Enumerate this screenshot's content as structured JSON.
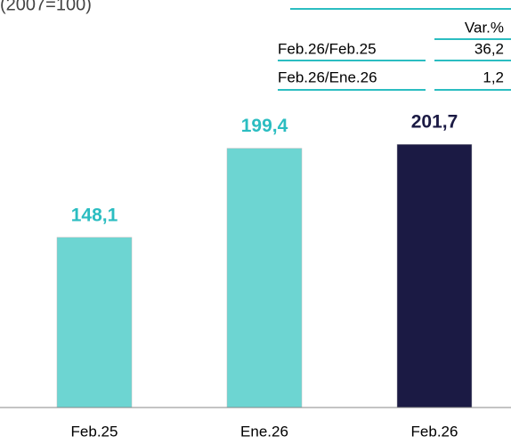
{
  "chart_data": {
    "type": "bar",
    "subtitle": "(2007=100)",
    "categories": [
      "Feb.25",
      "Ene.26",
      "Feb.26"
    ],
    "values": [
      148.1,
      199.4,
      201.7
    ],
    "value_labels": [
      "148,1",
      "199,4",
      "201,7"
    ],
    "colors": [
      "#6dd5d2",
      "#6dd5d2",
      "#1b1a44"
    ],
    "label_colors": [
      "#2bbdc1",
      "#2bbdc1",
      "#1b1a44"
    ],
    "ylim": [
      50,
      210
    ],
    "table": {
      "header": "Var.%",
      "rows": [
        [
          "Feb.26/Feb.25",
          "36,2"
        ],
        [
          "Feb.26/Ene.26",
          "1,2"
        ]
      ]
    }
  }
}
